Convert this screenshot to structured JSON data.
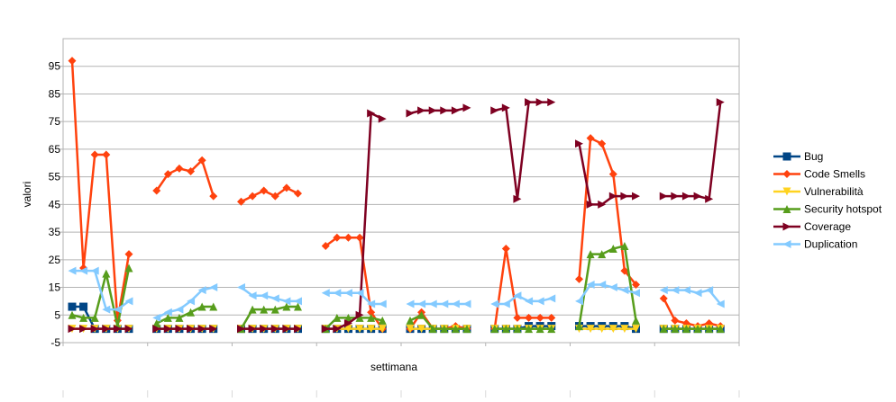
{
  "chart_data": {
    "type": "line",
    "title": "",
    "xlabel": "settimana",
    "ylabel": "valori",
    "ylim": [
      -5,
      105
    ],
    "yticks": [
      -5,
      5,
      15,
      25,
      35,
      45,
      55,
      65,
      75,
      85,
      95
    ],
    "grid": true,
    "legend_position": "right",
    "groups": 8,
    "points_per_group": 6,
    "series": [
      {
        "name": "Bug",
        "color": "#004586",
        "marker": "square",
        "values": [
          [
            8,
            8,
            0,
            0,
            0,
            0
          ],
          [
            0,
            0,
            0,
            0,
            0,
            0
          ],
          [
            0,
            0,
            0,
            0,
            0,
            0
          ],
          [
            0,
            0,
            0,
            0,
            0,
            0
          ],
          [
            0,
            0,
            0,
            0,
            0,
            0
          ],
          [
            0,
            0,
            0,
            1,
            1,
            1
          ],
          [
            1,
            1,
            1,
            1,
            1,
            0
          ],
          [
            0,
            0,
            0,
            0,
            0,
            0
          ]
        ]
      },
      {
        "name": "Code Smells",
        "color": "#ff420e",
        "marker": "diamond",
        "values": [
          [
            97,
            22,
            63,
            63,
            3,
            27
          ],
          [
            50,
            56,
            58,
            57,
            61,
            48
          ],
          [
            46,
            48,
            50,
            48,
            51,
            49
          ],
          [
            30,
            33,
            33,
            33,
            6,
            0
          ],
          [
            0,
            6,
            0,
            0,
            1,
            0
          ],
          [
            0,
            29,
            4,
            4,
            4,
            4
          ],
          [
            18,
            69,
            67,
            56,
            21,
            16
          ],
          [
            11,
            3,
            2,
            1,
            2,
            1
          ]
        ]
      },
      {
        "name": "Vulnerabilità",
        "color": "#ffd320",
        "marker": "triangle-down",
        "values": [
          [
            0,
            0,
            0,
            0,
            0,
            0
          ],
          [
            0,
            0,
            0,
            0,
            0,
            0
          ],
          [
            0,
            0,
            0,
            0,
            0,
            0
          ],
          [
            0,
            0,
            0,
            0,
            0,
            0
          ],
          [
            0,
            0,
            0,
            0,
            0,
            0
          ],
          [
            0,
            0,
            0,
            0,
            0,
            0
          ],
          [
            0,
            0,
            0,
            0,
            0,
            0
          ],
          [
            0,
            0,
            0,
            0,
            0,
            0
          ]
        ]
      },
      {
        "name": "Security hotspot",
        "color": "#579d1c",
        "marker": "triangle-up",
        "values": [
          [
            5,
            4,
            4,
            20,
            1,
            22
          ],
          [
            2,
            4,
            4,
            6,
            8,
            8
          ],
          [
            0,
            7,
            7,
            7,
            8,
            8
          ],
          [
            0,
            4,
            4,
            4,
            4,
            3
          ],
          [
            3,
            5,
            0,
            0,
            0,
            0
          ],
          [
            0,
            0,
            0,
            0,
            0,
            0
          ],
          [
            1,
            27,
            27,
            29,
            30,
            3
          ],
          [
            0,
            0,
            0,
            0,
            0,
            0
          ]
        ]
      },
      {
        "name": "Coverage",
        "color": "#7e0021",
        "marker": "triangle-right",
        "values": [
          [
            0,
            0,
            0,
            0,
            0,
            0
          ],
          [
            0,
            0,
            0,
            0,
            0,
            0
          ],
          [
            0,
            0,
            0,
            0,
            0,
            0
          ],
          [
            0,
            0,
            2,
            5,
            78,
            76
          ],
          [
            78,
            79,
            79,
            79,
            79,
            80
          ],
          [
            79,
            80,
            47,
            82,
            82,
            82
          ],
          [
            67,
            45,
            45,
            48,
            48,
            48
          ],
          [
            48,
            48,
            48,
            48,
            47,
            82
          ]
        ]
      },
      {
        "name": "Duplication",
        "color": "#83caff",
        "marker": "triangle-left",
        "values": [
          [
            21,
            21,
            21,
            7,
            7,
            10
          ],
          [
            4,
            6,
            7,
            10,
            14,
            15
          ],
          [
            15,
            12,
            12,
            11,
            10,
            10
          ],
          [
            13,
            13,
            13,
            13,
            9,
            9
          ],
          [
            9,
            9,
            9,
            9,
            9,
            9
          ],
          [
            9,
            9,
            12,
            10,
            10,
            11
          ],
          [
            10,
            16,
            16,
            15,
            14,
            13
          ],
          [
            14,
            14,
            14,
            13,
            14,
            9
          ]
        ]
      }
    ]
  }
}
